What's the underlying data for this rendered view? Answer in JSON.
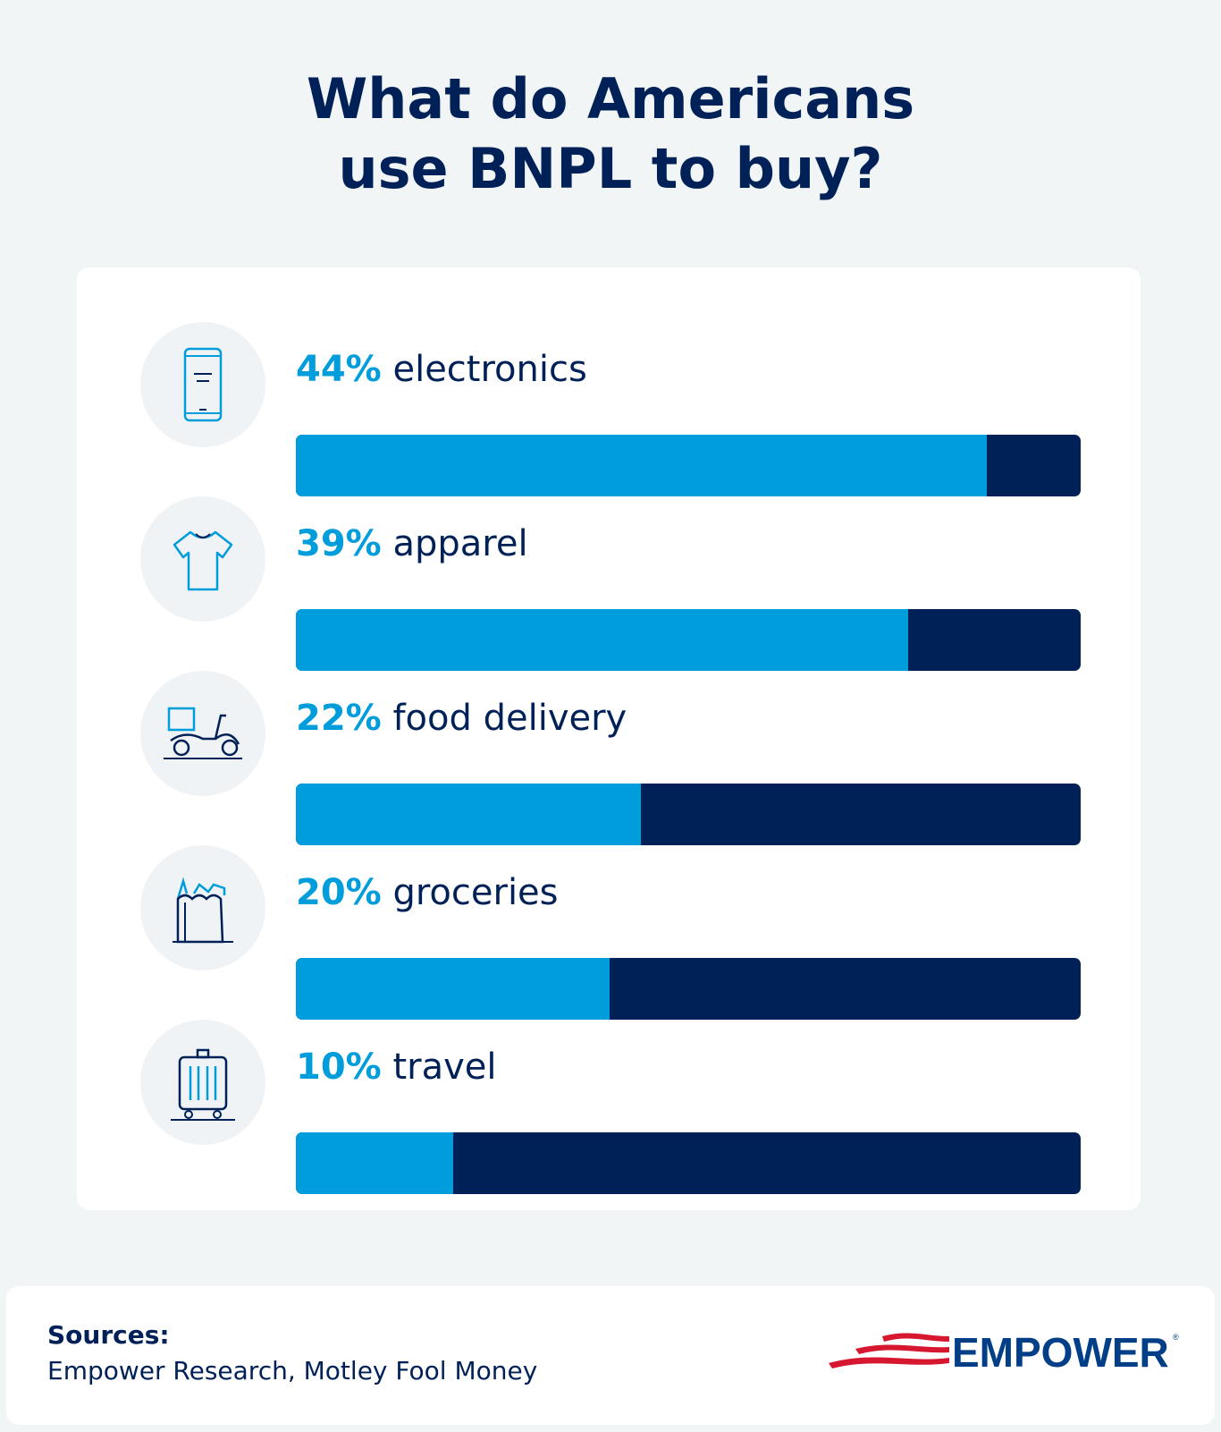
{
  "title_line1": "What do Americans",
  "title_line2": "use BNPL to buy?",
  "colors": {
    "background": "#f2f5f6",
    "fill": "#009ddc",
    "remainder": "#002157",
    "logo_red": "#d7172f",
    "logo_blue": "#003f87"
  },
  "chart_data": {
    "type": "bar",
    "orientation": "horizontal",
    "title": "What do Americans use BNPL to buy?",
    "categories": [
      "electronics",
      "apparel",
      "food delivery",
      "groceries",
      "travel"
    ],
    "values": [
      44,
      39,
      22,
      20,
      10
    ],
    "labels": [
      "44%",
      "39%",
      "22%",
      "20%",
      "10%"
    ],
    "icons": [
      "smartphone-icon",
      "t-shirt-icon",
      "delivery-scooter-icon",
      "grocery-bag-icon",
      "suitcase-icon"
    ],
    "xlim": [
      0,
      50
    ],
    "unit": "%",
    "grid": false
  },
  "footer": {
    "sources_label": "Sources:",
    "sources": "Empower Research, Motley Fool Money",
    "logo": "EMPOWER"
  }
}
